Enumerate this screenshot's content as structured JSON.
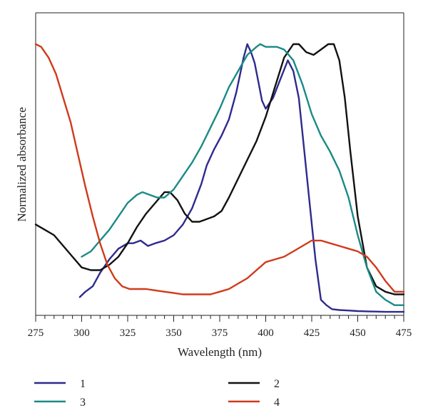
{
  "chart_data": {
    "type": "line",
    "xlabel": "Wavelength (nm)",
    "ylabel": "Normalized absorbance",
    "xlim": [
      275,
      475
    ],
    "ylim": [
      0,
      1
    ],
    "xticks": [
      275,
      300,
      325,
      350,
      375,
      400,
      425,
      450,
      475
    ],
    "yticks_shown": false,
    "grid": false,
    "legend_position": "below",
    "series": [
      {
        "name": "1",
        "color": "#2e2a8e",
        "x": [
          299,
          302,
          306,
          310,
          315,
          320,
          325,
          328,
          332,
          336,
          340,
          345,
          350,
          355,
          360,
          365,
          368,
          372,
          376,
          380,
          384,
          388,
          390,
          392,
          394,
          396,
          398,
          400,
          404,
          408,
          412,
          415,
          418,
          421,
          424,
          427,
          430,
          433,
          436,
          440,
          445,
          450,
          455,
          460,
          465,
          470,
          475
        ],
        "y": [
          0.06,
          0.08,
          0.1,
          0.15,
          0.2,
          0.24,
          0.26,
          0.26,
          0.27,
          0.25,
          0.26,
          0.27,
          0.29,
          0.33,
          0.39,
          0.48,
          0.55,
          0.61,
          0.66,
          0.72,
          0.82,
          0.95,
          1.0,
          0.97,
          0.93,
          0.86,
          0.79,
          0.76,
          0.8,
          0.87,
          0.94,
          0.9,
          0.8,
          0.6,
          0.4,
          0.2,
          0.05,
          0.03,
          0.015,
          0.012,
          0.01,
          0.008,
          0.007,
          0.006,
          0.005,
          0.005,
          0.005
        ]
      },
      {
        "name": "2",
        "color": "#111111",
        "x": [
          275,
          280,
          285,
          290,
          295,
          300,
          305,
          310,
          315,
          320,
          325,
          330,
          335,
          340,
          345,
          348,
          352,
          356,
          360,
          364,
          368,
          372,
          376,
          380,
          385,
          390,
          395,
          400,
          405,
          410,
          415,
          418,
          422,
          426,
          430,
          434,
          437,
          440,
          443,
          446,
          450,
          455,
          460,
          465,
          470,
          475
        ],
        "y": [
          0.33,
          0.31,
          0.29,
          0.25,
          0.21,
          0.17,
          0.16,
          0.16,
          0.18,
          0.21,
          0.26,
          0.32,
          0.37,
          0.41,
          0.45,
          0.45,
          0.42,
          0.37,
          0.34,
          0.34,
          0.35,
          0.36,
          0.38,
          0.43,
          0.5,
          0.57,
          0.64,
          0.73,
          0.84,
          0.95,
          1.0,
          1.0,
          0.97,
          0.96,
          0.98,
          1.0,
          1.0,
          0.94,
          0.8,
          0.6,
          0.36,
          0.17,
          0.1,
          0.08,
          0.07,
          0.07
        ]
      },
      {
        "name": "3",
        "color": "#1a8a86",
        "x": [
          300,
          305,
          310,
          315,
          320,
          325,
          330,
          333,
          337,
          341,
          345,
          350,
          355,
          360,
          365,
          370,
          375,
          380,
          385,
          390,
          395,
          397,
          400,
          403,
          406,
          410,
          415,
          420,
          425,
          430,
          435,
          440,
          445,
          450,
          455,
          460,
          465,
          470,
          475
        ],
        "y": [
          0.21,
          0.23,
          0.27,
          0.31,
          0.36,
          0.41,
          0.44,
          0.45,
          0.44,
          0.43,
          0.43,
          0.46,
          0.51,
          0.56,
          0.62,
          0.69,
          0.76,
          0.84,
          0.9,
          0.96,
          0.99,
          1.0,
          0.99,
          0.99,
          0.99,
          0.98,
          0.94,
          0.85,
          0.74,
          0.66,
          0.6,
          0.53,
          0.43,
          0.29,
          0.17,
          0.08,
          0.05,
          0.03,
          0.03
        ]
      },
      {
        "name": "4",
        "color": "#d03a1b",
        "x": [
          275,
          278,
          282,
          286,
          290,
          294,
          298,
          302,
          306,
          310,
          314,
          318,
          322,
          326,
          330,
          335,
          340,
          345,
          350,
          355,
          360,
          365,
          370,
          375,
          380,
          385,
          390,
          395,
          400,
          405,
          410,
          415,
          420,
          425,
          430,
          435,
          440,
          445,
          450,
          455,
          460,
          465,
          470,
          475
        ],
        "y": [
          1.0,
          0.99,
          0.95,
          0.89,
          0.8,
          0.71,
          0.59,
          0.47,
          0.36,
          0.26,
          0.18,
          0.13,
          0.1,
          0.09,
          0.09,
          0.09,
          0.085,
          0.08,
          0.075,
          0.07,
          0.07,
          0.07,
          0.07,
          0.08,
          0.09,
          0.11,
          0.13,
          0.16,
          0.19,
          0.2,
          0.21,
          0.23,
          0.25,
          0.27,
          0.27,
          0.26,
          0.25,
          0.24,
          0.23,
          0.21,
          0.17,
          0.12,
          0.08,
          0.08
        ]
      }
    ]
  },
  "legend": {
    "items": [
      {
        "label": "1",
        "color": "#2e2a8e"
      },
      {
        "label": "2",
        "color": "#111111"
      },
      {
        "label": "3",
        "color": "#1a8a86"
      },
      {
        "label": "4",
        "color": "#d03a1b"
      }
    ]
  }
}
